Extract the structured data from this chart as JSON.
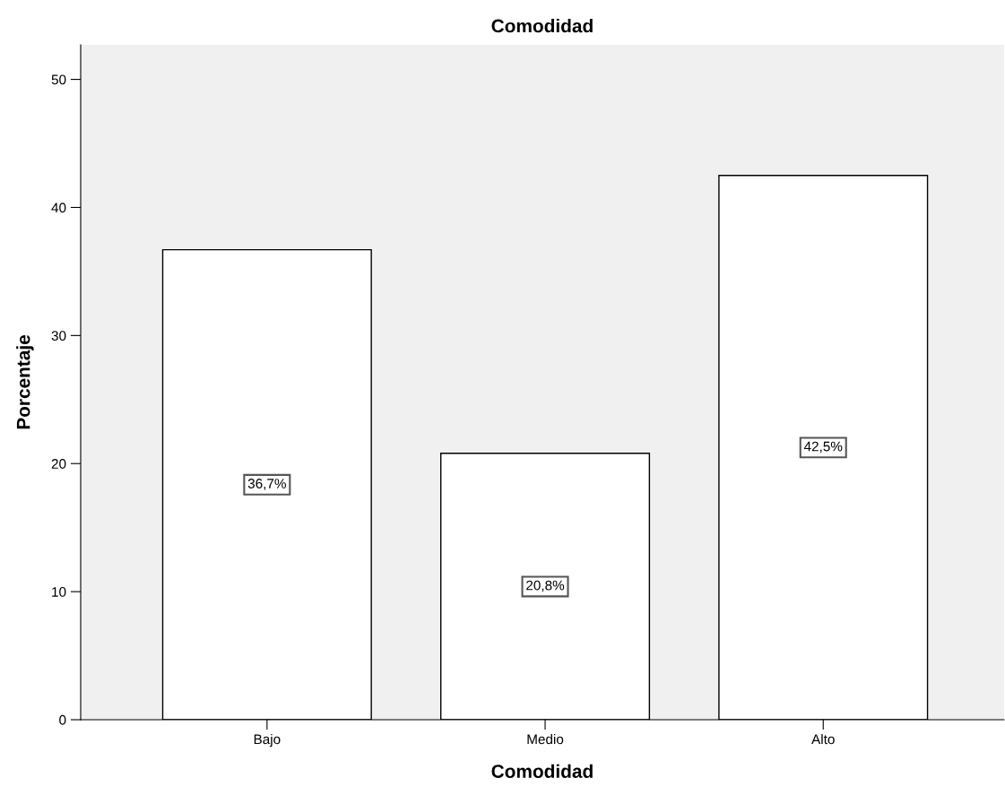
{
  "chart_data": {
    "type": "bar",
    "title": "Comodidad",
    "xlabel": "Comodidad",
    "ylabel": "Porcentaje",
    "categories": [
      "Bajo",
      "Medio",
      "Alto"
    ],
    "values": [
      36.7,
      20.8,
      42.5
    ],
    "value_labels": [
      "36,7%",
      "20,8%",
      "42,5%"
    ],
    "color": "#ffffff",
    "ylim": [
      0,
      52.7
    ],
    "yticks": [
      0,
      10,
      20,
      30,
      40,
      50
    ],
    "grid": false,
    "legend": false
  }
}
